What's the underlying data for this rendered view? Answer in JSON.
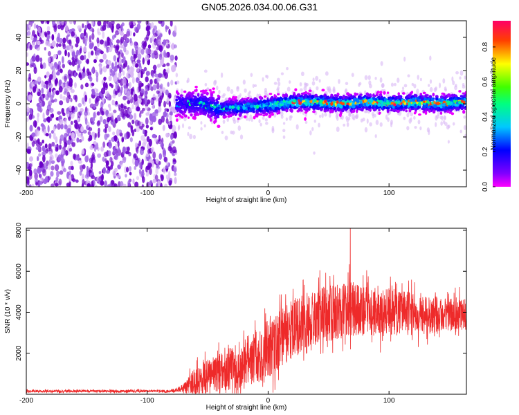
{
  "title": "GN05.2026.034.00.06.G31",
  "colors": {
    "snr_line": "#ee2a2a",
    "noise_low": "#d9b8f5",
    "noise_high": "#6a00c8"
  },
  "chart_data": [
    {
      "id": "spectrogram",
      "type": "heatmap",
      "title": "",
      "xlabel": "Height of straight line (km)",
      "ylabel": "Frequency (Hz)",
      "xlim": [
        -200,
        164
      ],
      "ylim": [
        -50,
        50
      ],
      "xticks": [
        -200,
        -100,
        0,
        100
      ],
      "yticks": [
        -40,
        -20,
        0,
        20,
        40
      ],
      "colorbar": {
        "label": "Normalized spectral amplitude",
        "range": [
          0.0,
          0.95
        ],
        "ticks": [
          0.0,
          0.2,
          0.4,
          0.6,
          0.8
        ],
        "tick_labels": [
          "0.0",
          "0.2",
          "0.4",
          "0.6",
          "0.8"
        ],
        "colormap": "rainbow (magenta→blue→cyan→green→yellow→red)"
      },
      "regions": [
        {
          "name": "noise",
          "x_range": [
            -200,
            -76
          ],
          "freq_range": [
            -50,
            50
          ],
          "amplitude": "low, scattered"
        },
        {
          "name": "signal_band",
          "x_range": [
            -76,
            164
          ],
          "center_freq": [
            {
              "x": -70,
              "f": 0
            },
            {
              "x": -55,
              "f": 0
            },
            {
              "x": -40,
              "f": -3
            },
            {
              "x": -20,
              "f": -2
            },
            {
              "x": 0,
              "f": -1
            },
            {
              "x": 20,
              "f": 1
            },
            {
              "x": 40,
              "f": 1
            },
            {
              "x": 60,
              "f": 0
            },
            {
              "x": 80,
              "f": 1
            },
            {
              "x": 100,
              "f": 0
            },
            {
              "x": 120,
              "f": 1
            },
            {
              "x": 140,
              "f": 0
            },
            {
              "x": 164,
              "f": 1
            }
          ],
          "peak_amplitude_from_x": 20
        }
      ]
    },
    {
      "id": "snr",
      "type": "line",
      "title": "",
      "xlabel": "Height of straight line (km)",
      "ylabel": "SNR (10 * v/v)",
      "xlim": [
        -200,
        164
      ],
      "ylim": [
        0,
        8100
      ],
      "xticks": [
        -200,
        -100,
        0,
        100
      ],
      "yticks": [
        2000,
        4000,
        6000,
        8000
      ],
      "series": [
        {
          "name": "SNR",
          "envelope": [
            {
              "x": -200,
              "mean": 150,
              "spread": 80
            },
            {
              "x": -80,
              "mean": 150,
              "spread": 80
            },
            {
              "x": -70,
              "mean": 300,
              "spread": 250
            },
            {
              "x": -60,
              "mean": 700,
              "spread": 900
            },
            {
              "x": -40,
              "mean": 1000,
              "spread": 1200
            },
            {
              "x": -20,
              "mean": 1500,
              "spread": 1500
            },
            {
              "x": 0,
              "mean": 2200,
              "spread": 1800
            },
            {
              "x": 20,
              "mean": 3200,
              "spread": 1800
            },
            {
              "x": 40,
              "mean": 3800,
              "spread": 1700
            },
            {
              "x": 70,
              "mean": 4200,
              "spread": 1700
            },
            {
              "x": 100,
              "mean": 4000,
              "spread": 1500
            },
            {
              "x": 130,
              "mean": 3900,
              "spread": 1200
            },
            {
              "x": 164,
              "mean": 3900,
              "spread": 1000
            }
          ],
          "peak": {
            "x": 68,
            "y": 8100
          }
        }
      ]
    }
  ]
}
